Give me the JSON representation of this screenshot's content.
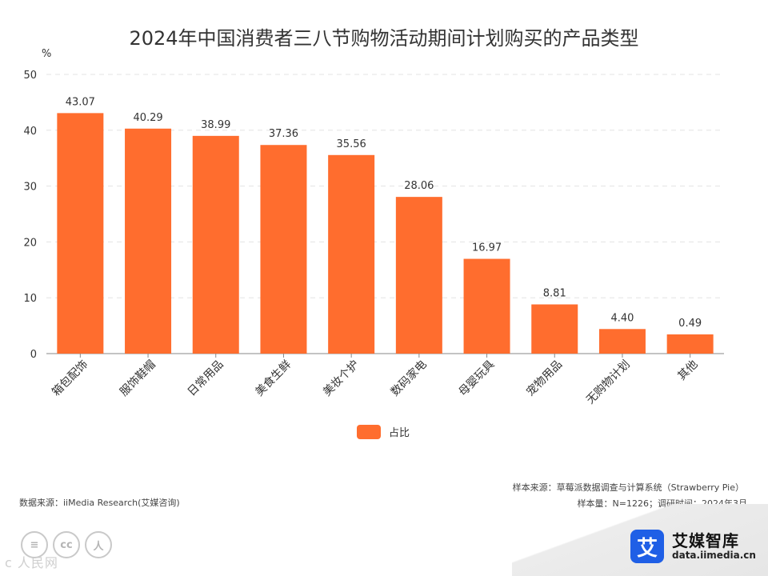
{
  "chart_data": {
    "type": "bar",
    "title": "2024年中国消费者三八节购物活动期间计划购买的产品类型",
    "ylabel": "%",
    "xlabel": "",
    "ylim": [
      0,
      50
    ],
    "yticks": [
      0,
      10,
      20,
      30,
      40,
      50
    ],
    "grid": true,
    "legend": "bottom-center",
    "categories": [
      "箱包配饰",
      "服饰鞋帽",
      "日常用品",
      "美食生鲜",
      "美妆个护",
      "数码家电",
      "母婴玩具",
      "宠物用品",
      "无购物计划",
      "其他"
    ],
    "series": [
      {
        "name": "占比",
        "values": [
          43.07,
          40.29,
          38.99,
          37.36,
          35.56,
          28.06,
          16.97,
          8.81,
          4.4,
          0.49
        ],
        "labels": [
          "43.07",
          "40.29",
          "38.99",
          "37.36",
          "35.56",
          "28.06",
          "16.97",
          "8.81",
          "4.40",
          "0.49"
        ],
        "color": "#ff6d2e"
      }
    ]
  },
  "footer": {
    "source": "数据来源：iiMedia Research(艾媒咨询)",
    "sample_source": "样本来源：草莓派数据调查与计算系统（Strawberry Pie）",
    "sample_info": "样本量：N=1226；调研时间：2024年3月"
  },
  "license": {
    "icon1": "≡",
    "icon2": "cc",
    "icon3": "人",
    "watermark": "c 人民网 "
  },
  "brand": {
    "name": "艾媒智库",
    "url": "data.iimedia.cn",
    "mark": "艾",
    "color": "#1f5fe6"
  }
}
